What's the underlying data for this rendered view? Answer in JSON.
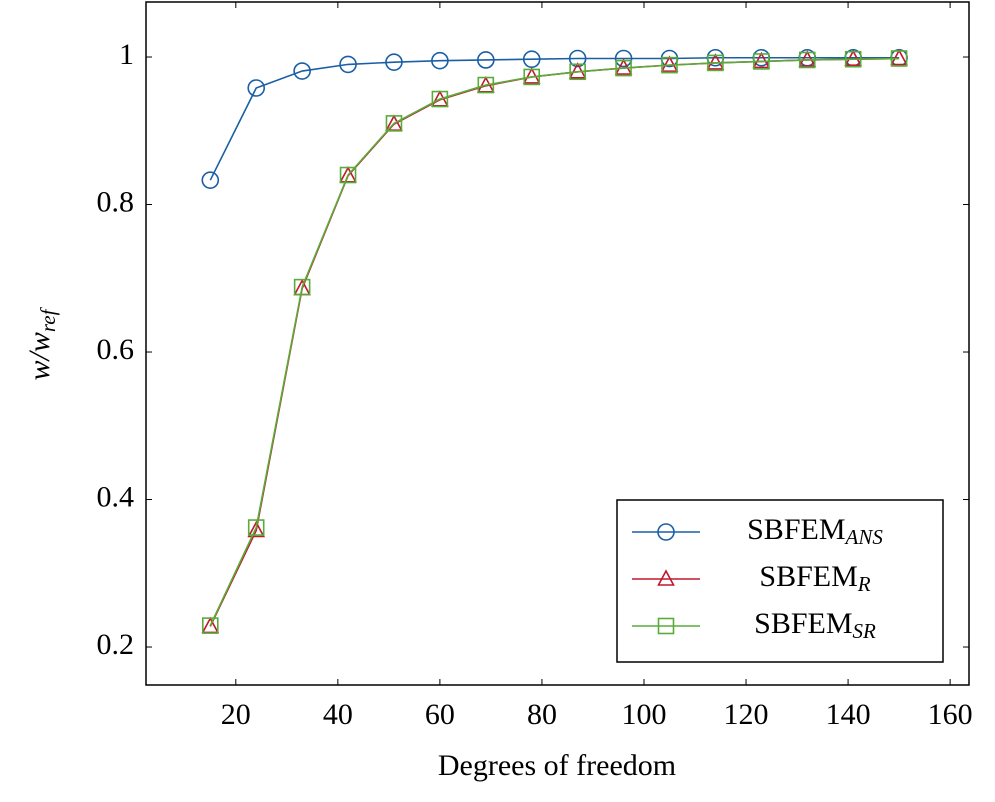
{
  "chart_data": {
    "type": "line",
    "x_label": "Degrees of freedom",
    "y_label": "w/w",
    "y_label_subscript": "ref",
    "x": [
      15,
      24,
      33,
      42,
      51,
      60,
      69,
      78,
      87,
      96,
      105,
      114,
      123,
      132,
      141,
      150
    ],
    "series": [
      {
        "name": "SBFEM",
        "name_subscript": "ANS",
        "color": "#1a5fa6",
        "marker": "circle",
        "values": [
          0.833,
          0.958,
          0.981,
          0.99,
          0.993,
          0.995,
          0.996,
          0.997,
          0.998,
          0.998,
          0.998,
          0.999,
          0.999,
          0.999,
          0.999,
          0.999
        ]
      },
      {
        "name": "SBFEM",
        "name_subscript": "R",
        "color": "#c0182e",
        "marker": "triangle",
        "values": [
          0.228,
          0.358,
          0.686,
          0.839,
          0.909,
          0.942,
          0.961,
          0.973,
          0.98,
          0.985,
          0.989,
          0.992,
          0.994,
          0.996,
          0.997,
          0.998
        ]
      },
      {
        "name": "SBFEM",
        "name_subscript": "SR",
        "color": "#5aac3a",
        "marker": "square",
        "values": [
          0.229,
          0.362,
          0.688,
          0.84,
          0.91,
          0.943,
          0.962,
          0.973,
          0.98,
          0.985,
          0.989,
          0.992,
          0.994,
          0.996,
          0.997,
          0.998
        ]
      }
    ],
    "xlim": [
      2.4,
      163.7
    ],
    "ylim": [
      0.1485,
      1.0746
    ],
    "xticks": [
      20,
      40,
      60,
      80,
      100,
      120,
      140,
      160
    ],
    "yticks": [
      0.2,
      0.4,
      0.6,
      0.8,
      1
    ],
    "legend_position": "lower right"
  }
}
